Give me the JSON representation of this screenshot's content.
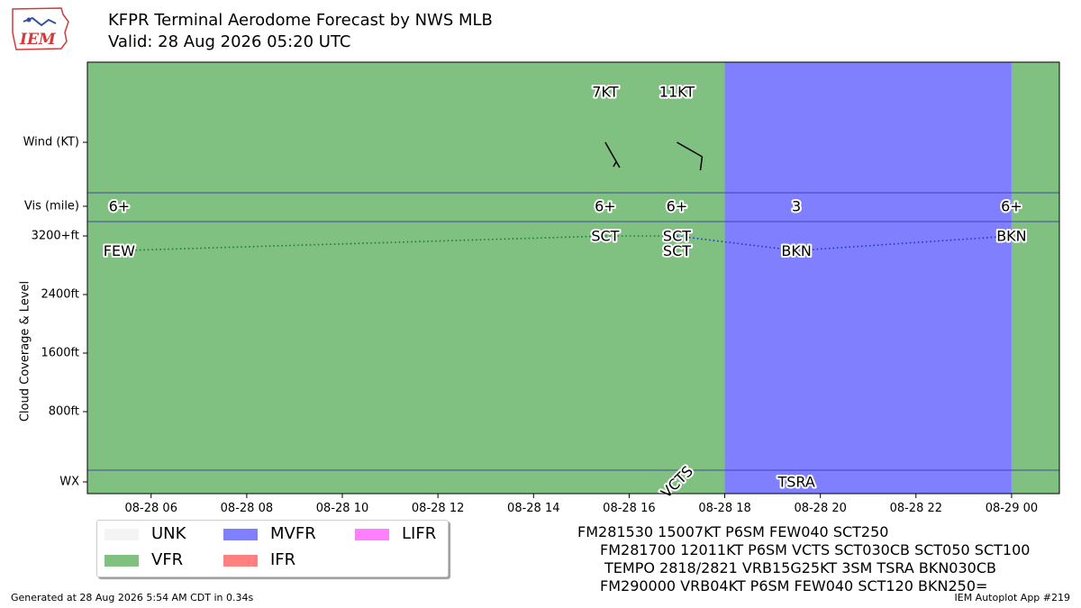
{
  "header": {
    "title_line1": "KFPR Terminal Aerodome Forecast by NWS MLB",
    "title_line2": "Valid: 28 Aug 2026 05:20 UTC"
  },
  "logo": {
    "text": "IEM",
    "icon": "iowa-state-outline-icon"
  },
  "chart_data": {
    "type": "area",
    "x_range": [
      "2026-08-28 04:40",
      "2026-08-29 01:00"
    ],
    "x_ticks": [
      "08-28 06",
      "08-28 08",
      "08-28 10",
      "08-28 12",
      "08-28 14",
      "08-28 16",
      "08-28 18",
      "08-28 20",
      "08-28 22",
      "08-29 00"
    ],
    "y_ticks": [
      "WX",
      "800ft",
      "1600ft",
      "2400ft",
      "3200+ft",
      "Vis (mile)",
      "Wind (KT)"
    ],
    "ylabel": "Cloud Coverage & Level",
    "colors": {
      "VFR": "#80c080",
      "MVFR": "#8080ff",
      "IFR": "#ff8080",
      "LIFR": "#ff80ff",
      "UNK": "#f4f4f4"
    },
    "category_bands": [
      {
        "start": "2026-08-28 04:40",
        "end": "2026-08-28 18:00",
        "category": "VFR"
      },
      {
        "start": "2026-08-28 18:00",
        "end": "2026-08-29 00:00",
        "category": "MVFR"
      },
      {
        "start": "2026-08-29 00:00",
        "end": "2026-08-29 01:00",
        "category": "VFR"
      }
    ],
    "wind": [
      {
        "time": "2026-08-28 15:30",
        "label": "7KT",
        "direction": 150,
        "speed": 7
      },
      {
        "time": "2026-08-28 17:00",
        "label": "11KT",
        "direction": 120,
        "speed": 11
      }
    ],
    "visibility": [
      {
        "time": "2026-08-28 05:20",
        "label": "6+"
      },
      {
        "time": "2026-08-28 15:30",
        "label": "6+"
      },
      {
        "time": "2026-08-28 17:00",
        "label": "6+"
      },
      {
        "time": "2026-08-28 19:30",
        "label": "3"
      },
      {
        "time": "2026-08-29 00:00",
        "label": "6+"
      }
    ],
    "clouds": [
      {
        "time": "2026-08-28 05:20",
        "level_ft": 3000,
        "cover": "FEW"
      },
      {
        "time": "2026-08-28 15:30",
        "level_ft": 3200,
        "cover": "SCT"
      },
      {
        "time": "2026-08-28 17:00",
        "level_ft": 3200,
        "cover": "SCT"
      },
      {
        "time": "2026-08-28 17:00",
        "level_ft": 3000,
        "cover": "SCT"
      },
      {
        "time": "2026-08-28 19:30",
        "level_ft": 3000,
        "cover": "BKN"
      },
      {
        "time": "2026-08-29 00:00",
        "level_ft": 3200,
        "cover": "BKN"
      }
    ],
    "weather": [
      {
        "time": "2026-08-28 17:00",
        "label": "VCTS",
        "rotated": true
      },
      {
        "time": "2026-08-28 19:30",
        "label": "TSRA",
        "rotated": false
      }
    ]
  },
  "legend": [
    {
      "label": "UNK",
      "color": "#f4f4f4"
    },
    {
      "label": "VFR",
      "color": "#80c080"
    },
    {
      "label": "MVFR",
      "color": "#8080ff"
    },
    {
      "label": "IFR",
      "color": "#ff8080"
    },
    {
      "label": "LIFR",
      "color": "#ff80ff"
    }
  ],
  "taf_text": [
    "FM281530 15007KT P6SM FEW040 SCT250",
    "FM281700 12011KT P6SM VCTS SCT030CB SCT050 SCT100",
    "TEMPO 2818/2821 VRB15G25KT 3SM TSRA BKN030CB",
    "FM290000 VRB04KT P6SM FEW040 SCT120 BKN250="
  ],
  "footer": {
    "generated": "Generated at 28 Aug 2026 5:54 AM CDT in 0.34s",
    "app": "IEM Autoplot App #219"
  }
}
